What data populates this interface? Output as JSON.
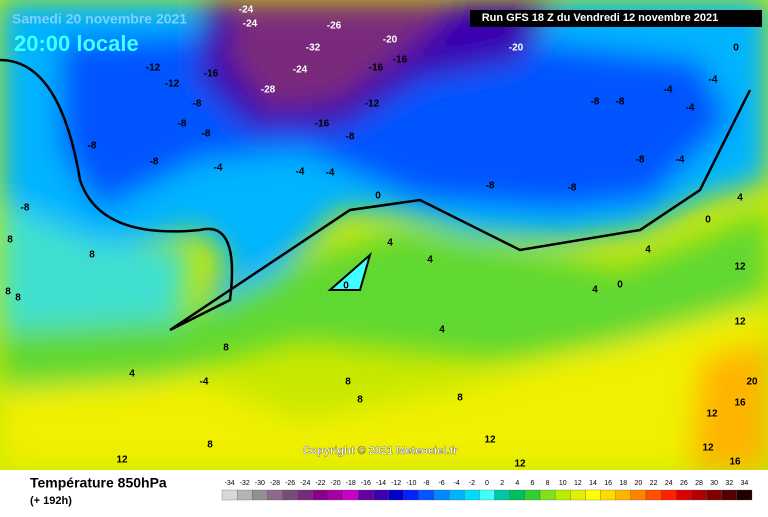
{
  "header": {
    "date": "Samedi 20 novembre 2021",
    "time": "20:00 locale",
    "run": "Run GFS 18 Z du Vendredi 12 novembre 2021"
  },
  "map": {
    "copyright": "Copyright © 2021 Meteociel.fr",
    "contour_labels": [
      -24,
      -24,
      -26,
      -32,
      -24,
      -28,
      -20,
      -16,
      -16,
      -20,
      -12,
      -16,
      -8,
      -12,
      -16,
      -12,
      -8,
      -8,
      -8,
      -8,
      -8,
      -4,
      -4,
      -4,
      0,
      -8,
      -8,
      -8,
      -8,
      -8,
      -4,
      -4,
      -4,
      -4,
      -8,
      8,
      8,
      8,
      8,
      4,
      -4,
      4,
      0,
      4,
      4,
      4,
      4,
      0,
      8,
      8,
      8,
      8,
      8,
      12,
      12,
      12,
      12,
      16,
      20,
      12,
      12,
      12,
      16,
      4,
      0,
      0
    ]
  },
  "footer": {
    "title": "Température 850hPa",
    "lead": "(+ 192h)"
  },
  "legend": {
    "ticks": [
      -34,
      -32,
      -30,
      -28,
      -26,
      -24,
      -22,
      -20,
      -18,
      -16,
      -14,
      -12,
      -10,
      -8,
      -6,
      -4,
      -2,
      0,
      2,
      4,
      6,
      8,
      10,
      12,
      14,
      16,
      18,
      20,
      22,
      24,
      26,
      28,
      30,
      32,
      34
    ],
    "colors": [
      "#d8d8d8",
      "#b4b4b4",
      "#909090",
      "#8a6a8a",
      "#7a4a7a",
      "#7a2a7a",
      "#8a008a",
      "#a400a4",
      "#c800c8",
      "#6400a0",
      "#3a00b0",
      "#0000c8",
      "#0022ff",
      "#0055ff",
      "#0088ff",
      "#00b4ff",
      "#00dcff",
      "#40ffff",
      "#00c8a0",
      "#00be5a",
      "#30d030",
      "#80e020",
      "#b4f000",
      "#e0f000",
      "#ffff00",
      "#ffdc00",
      "#ffb400",
      "#ff8200",
      "#ff5000",
      "#ff2000",
      "#e00000",
      "#b00000",
      "#800000",
      "#500000",
      "#200000"
    ]
  }
}
